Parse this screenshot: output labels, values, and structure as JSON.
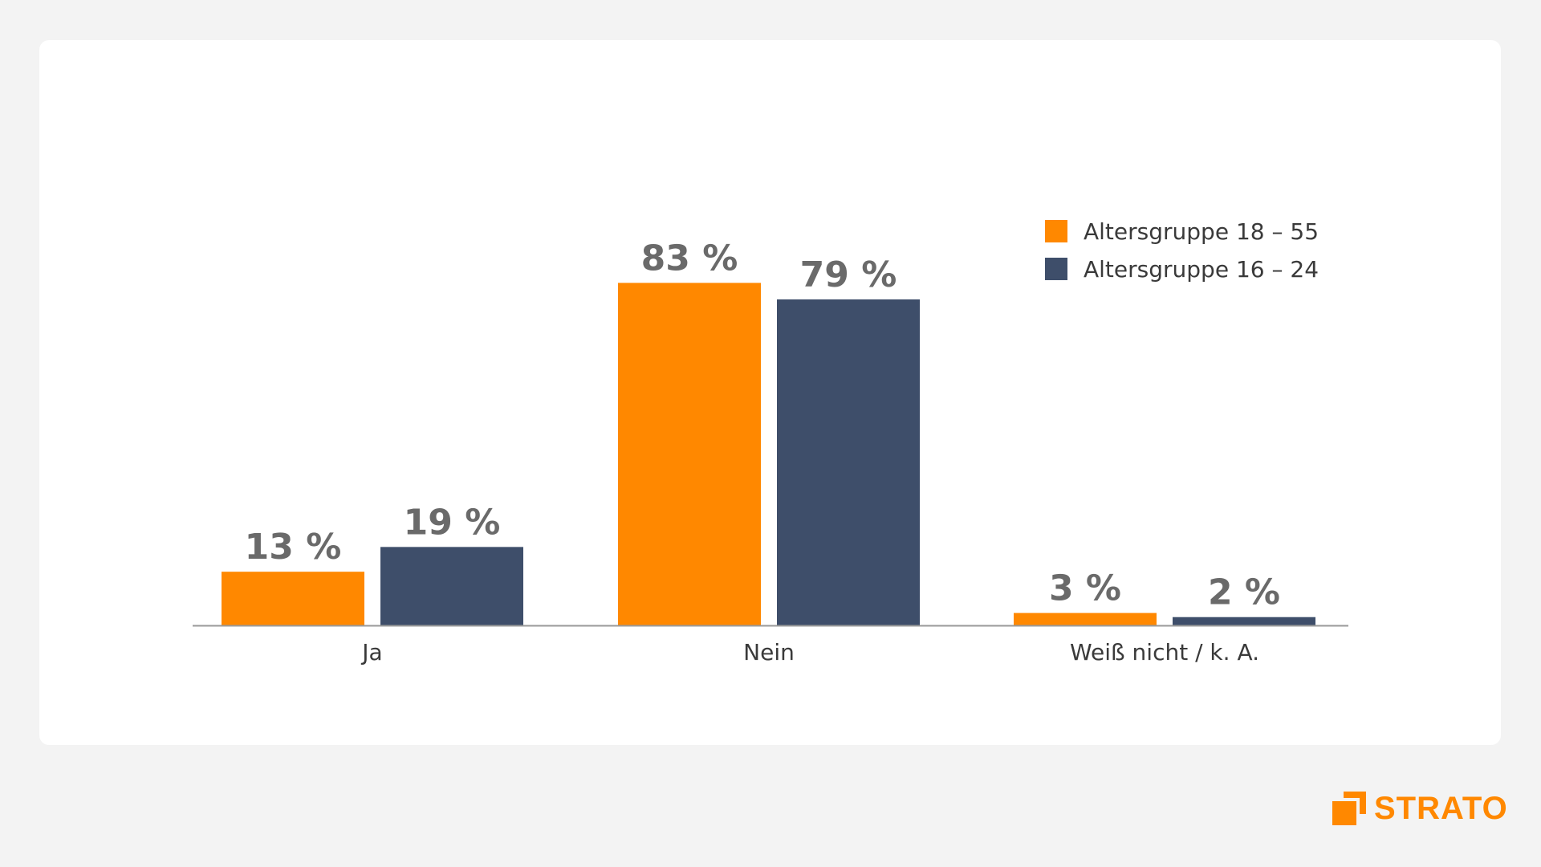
{
  "chart_data": {
    "type": "bar",
    "categories": [
      "Ja",
      "Nein",
      "Weiß nicht / k. A."
    ],
    "series": [
      {
        "name": "Altersgruppe 18 – 55",
        "values": [
          13,
          83,
          3
        ],
        "labels": [
          "13 %",
          "83 %",
          "3 %"
        ],
        "color": "#ff8800"
      },
      {
        "name": "Altersgruppe 16 – 24",
        "values": [
          19,
          79,
          2
        ],
        "labels": [
          "19 %",
          "79 %",
          "2 %"
        ],
        "color": "#3e4e6a"
      }
    ],
    "title": "",
    "xlabel": "",
    "ylabel": "",
    "ylim": [
      0,
      100
    ],
    "grid": false,
    "legend": "top-right"
  },
  "logo": {
    "text": "STRATO",
    "color": "#ff8800"
  }
}
